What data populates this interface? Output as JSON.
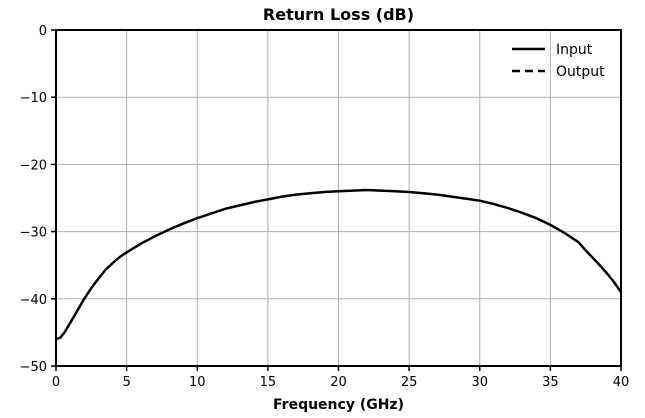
{
  "chart_data": {
    "type": "line",
    "title": "Return Loss (dB)",
    "xlabel": "Frequency (GHz)",
    "ylabel": "",
    "xlim": [
      0,
      40
    ],
    "ylim": [
      -50,
      0
    ],
    "xticks": [
      "0",
      "5",
      "10",
      "15",
      "20",
      "25",
      "30",
      "35",
      "40"
    ],
    "yticks": [
      "0",
      "−10",
      "−20",
      "−30",
      "−40",
      "−50"
    ],
    "grid": true,
    "legend": "top-right",
    "series": [
      {
        "name": "Input",
        "style": "solid",
        "color": "#000000",
        "x": [
          0,
          0.3,
          0.6,
          1,
          1.5,
          2,
          2.5,
          3,
          3.5,
          4,
          4.5,
          5,
          6,
          7,
          8,
          9,
          10,
          11,
          12,
          13,
          14,
          15,
          16,
          17,
          18,
          19,
          20,
          21,
          22,
          23,
          24,
          25,
          26,
          27,
          28,
          29,
          30,
          31,
          32,
          33,
          34,
          35,
          36,
          37,
          37.5,
          38,
          38.5,
          39,
          39.5,
          40
        ],
        "y": [
          -46,
          -45.8,
          -45,
          -43.6,
          -41.8,
          -40,
          -38.4,
          -37,
          -35.7,
          -34.7,
          -33.8,
          -33.1,
          -31.8,
          -30.7,
          -29.7,
          -28.8,
          -28,
          -27.3,
          -26.6,
          -26.1,
          -25.6,
          -25.2,
          -24.8,
          -24.5,
          -24.3,
          -24.1,
          -24,
          -23.9,
          -23.8,
          -23.9,
          -24,
          -24.1,
          -24.3,
          -24.5,
          -24.8,
          -25.1,
          -25.4,
          -25.9,
          -26.5,
          -27.2,
          -28,
          -29,
          -30.2,
          -31.6,
          -32.8,
          -33.9,
          -35,
          -36.2,
          -37.5,
          -39
        ]
      },
      {
        "name": "Output",
        "style": "dashed",
        "color": "#000000",
        "x": [],
        "y": []
      }
    ]
  }
}
